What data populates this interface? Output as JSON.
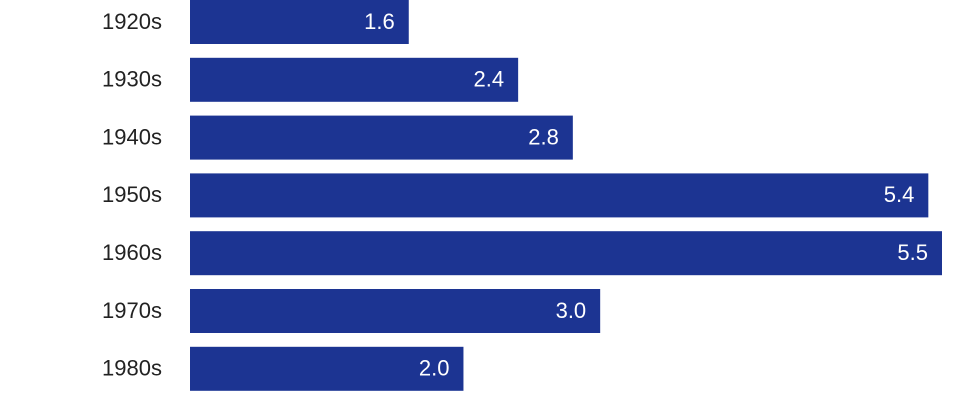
{
  "chart_data": {
    "type": "bar",
    "orientation": "horizontal",
    "categories": [
      "1920s",
      "1930s",
      "1940s",
      "1950s",
      "1960s",
      "1970s",
      "1980s"
    ],
    "values": [
      1.6,
      2.4,
      2.8,
      5.4,
      5.5,
      3.0,
      2.0
    ],
    "value_labels": [
      "1.6",
      "2.4",
      "2.8",
      "5.4",
      "5.5",
      "3.0",
      "2.0"
    ],
    "color": "#1c3492",
    "xlim": [
      0,
      5.5
    ]
  }
}
